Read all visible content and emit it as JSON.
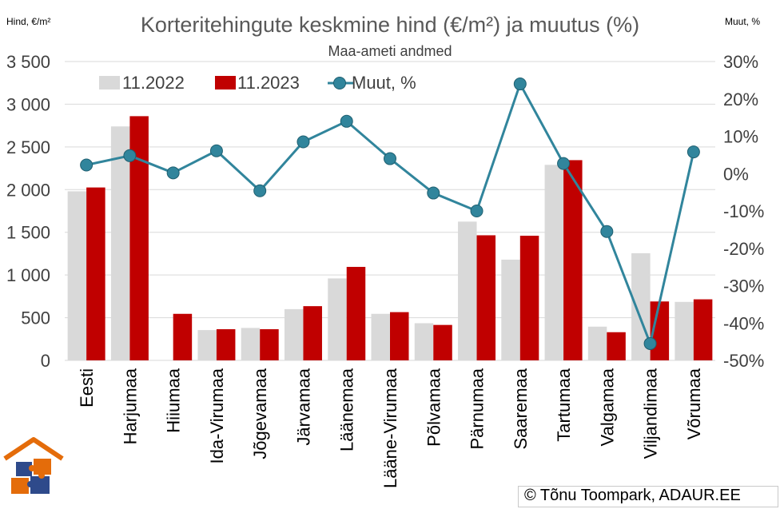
{
  "chart_data": {
    "type": "bar+line",
    "title": "Korteritehingute keskmine hind (€/m²) ja muutus (%)",
    "subtitle": "Maa-ameti andmed",
    "y_left_label": "Hind, €/m²",
    "y_right_label": "Muut, %",
    "y_left_lim": [
      0,
      3500
    ],
    "y_left_ticks": [
      0,
      500,
      1000,
      1500,
      2000,
      2500,
      3000,
      3500
    ],
    "y_left_tick_labels": [
      "0",
      "500",
      "1 000",
      "1 500",
      "2 000",
      "2 500",
      "3 000",
      "3 500"
    ],
    "y_right_lim": [
      -50,
      30
    ],
    "y_right_ticks": [
      -50,
      -40,
      -30,
      -20,
      -10,
      0,
      10,
      20,
      30
    ],
    "y_right_tick_labels": [
      "-50%",
      "-40%",
      "-30%",
      "-20%",
      "-10%",
      "0%",
      "10%",
      "20%",
      "30%"
    ],
    "grid": "horizontal",
    "legend_position": "top-left",
    "categories": [
      "Eesti",
      "Harjumaa",
      "Hiiumaa",
      "Ida-Virumaa",
      "Jõgevamaa",
      "Järvamaa",
      "Läänemaa",
      "Lääne-Virumaa",
      "Põlvamaa",
      "Pärnumaa",
      "Saaremaa",
      "Tartumaa",
      "Valgamaa",
      "Viljandimaa",
      "Võrumaa"
    ],
    "series": [
      {
        "name": "11.2022",
        "kind": "bar",
        "axis": "left",
        "color": "#d9d9d9",
        "values": [
          1980,
          2740,
          null,
          355,
          380,
          600,
          960,
          545,
          435,
          1625,
          1180,
          2290,
          395,
          1255,
          685
        ]
      },
      {
        "name": "11.2023",
        "kind": "bar",
        "axis": "left",
        "color": "#c00000",
        "values": [
          2025,
          2860,
          545,
          365,
          365,
          635,
          1095,
          565,
          415,
          1465,
          1460,
          2345,
          330,
          690,
          715
        ]
      },
      {
        "name": "Muut, %",
        "kind": "line",
        "axis": "right",
        "color": "#31859c",
        "values": [
          2.3,
          4.8,
          0.2,
          6.1,
          -4.6,
          8.5,
          14.0,
          4.0,
          -5.2,
          -10.0,
          24.0,
          2.7,
          -15.5,
          -45.5,
          5.8
        ]
      }
    ]
  },
  "credit": "© Tõnu Toompark, ADAUR.EE",
  "colors": {
    "bar_2022": "#d9d9d9",
    "bar_2023": "#c00000",
    "line": "#31859c",
    "marker_fill": "#31859c",
    "gridline": "#d9d9d9",
    "logo_orange": "#e46c0a",
    "logo_blue": "#2e4a8b"
  },
  "logo_icon": "house-puzzle-icon"
}
